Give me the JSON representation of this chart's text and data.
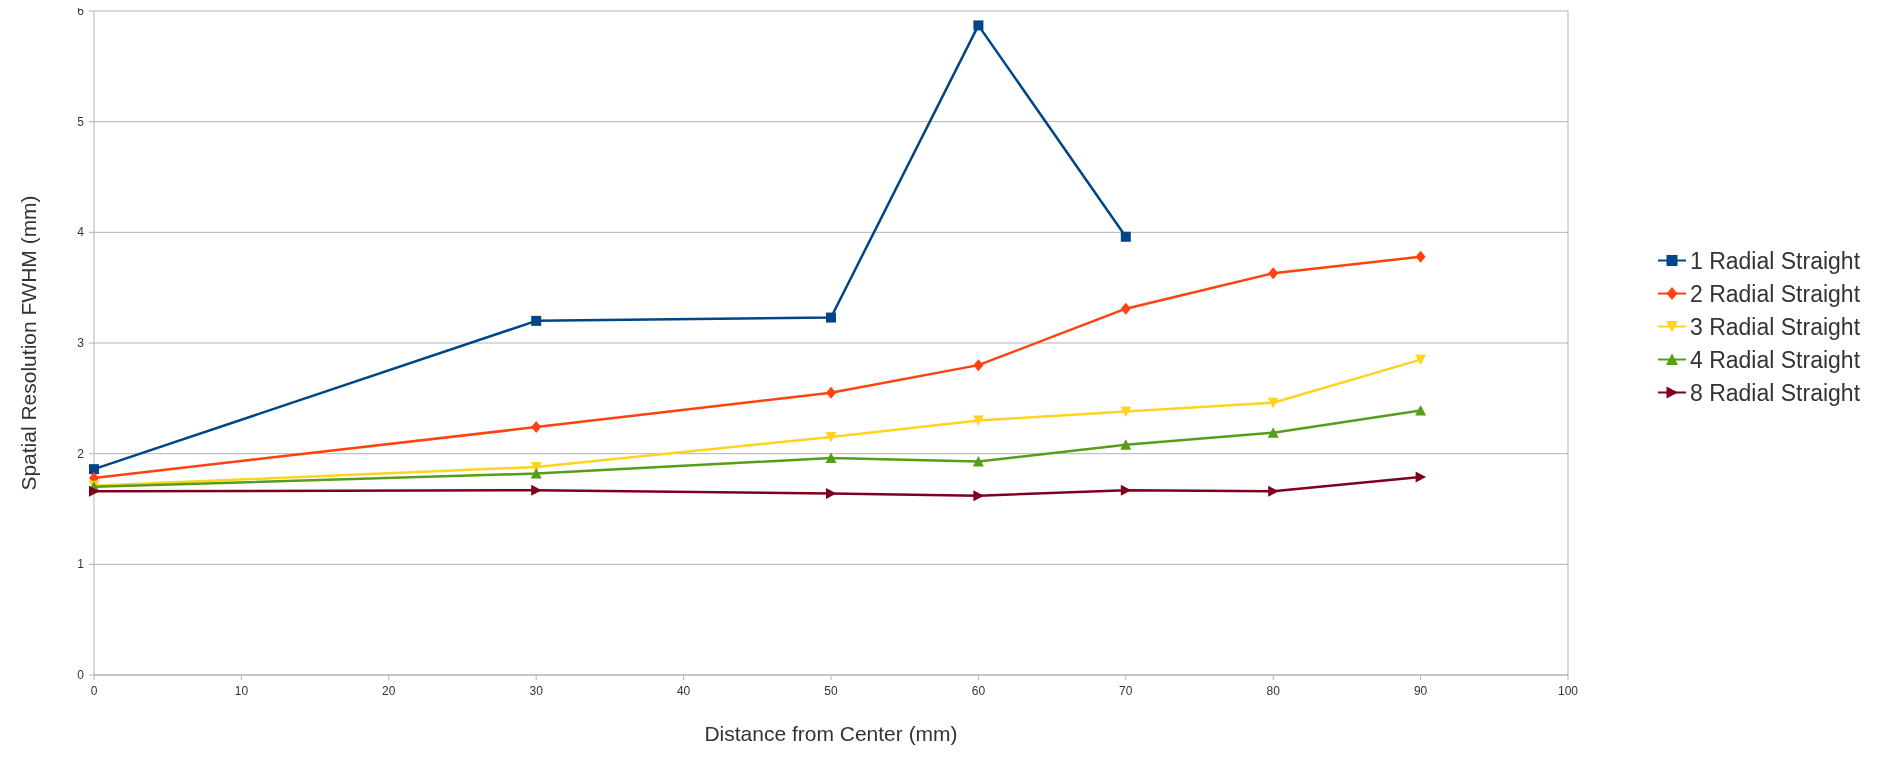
{
  "chart_data": {
    "type": "line",
    "xlabel": "Distance from Center (mm)",
    "ylabel": "Spatial Resolution FWHM (mm)",
    "xlim": [
      0,
      100
    ],
    "xticks": [
      0,
      10,
      20,
      30,
      40,
      50,
      60,
      70,
      80,
      90,
      100
    ],
    "ylim": [
      0,
      6
    ],
    "yticks": [
      0,
      1,
      2,
      3,
      4,
      5,
      6
    ],
    "grid": "y",
    "legend": "right",
    "series": [
      {
        "name": "1 Radial Straight",
        "color": "#004586",
        "marker": "square",
        "x": [
          0,
          30,
          50,
          60,
          70
        ],
        "values": [
          1.86,
          3.2,
          3.23,
          5.87,
          3.96
        ]
      },
      {
        "name": "2 Radial Straight",
        "color": "#ff420e",
        "marker": "diamond",
        "x": [
          0,
          30,
          50,
          60,
          70,
          80,
          90
        ],
        "values": [
          1.78,
          2.24,
          2.55,
          2.8,
          3.31,
          3.63,
          3.78
        ]
      },
      {
        "name": "3 Radial Straight",
        "color": "#ffd320",
        "marker": "triangle-down",
        "x": [
          0,
          30,
          50,
          60,
          70,
          80,
          90
        ],
        "values": [
          1.71,
          1.88,
          2.15,
          2.3,
          2.38,
          2.46,
          2.85
        ]
      },
      {
        "name": "4 Radial Straight",
        "color": "#579d1c",
        "marker": "triangle",
        "x": [
          0,
          30,
          50,
          60,
          70,
          80,
          90
        ],
        "values": [
          1.7,
          1.82,
          1.96,
          1.93,
          2.08,
          2.19,
          2.39
        ]
      },
      {
        "name": "8 Radial Straight",
        "color": "#7e0021",
        "marker": "triangle-right",
        "x": [
          0,
          30,
          50,
          60,
          70,
          80,
          90
        ],
        "values": [
          1.66,
          1.67,
          1.64,
          1.62,
          1.67,
          1.66,
          1.79
        ]
      }
    ]
  }
}
